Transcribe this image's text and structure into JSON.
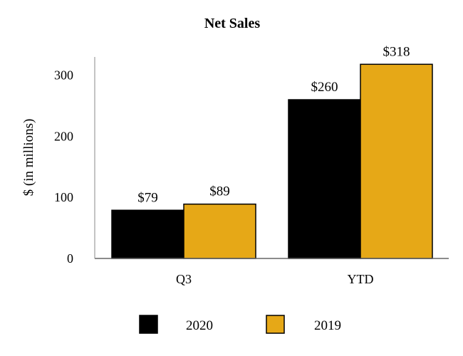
{
  "chart_data": {
    "type": "bar",
    "title": "Net Sales",
    "ylabel": "$ (in millions)",
    "xlabel": "",
    "categories": [
      "Q3",
      "YTD"
    ],
    "ylim": [
      0,
      330
    ],
    "yticks": [
      0,
      100,
      200,
      300
    ],
    "series": [
      {
        "name": "2020",
        "values": [
          79,
          260
        ],
        "labels": [
          "$79",
          "$260"
        ],
        "color": "#000000"
      },
      {
        "name": "2019",
        "values": [
          89,
          318
        ],
        "labels": [
          "$89",
          "$318"
        ],
        "color": "#E6A817"
      }
    ],
    "legend_position": "bottom"
  }
}
